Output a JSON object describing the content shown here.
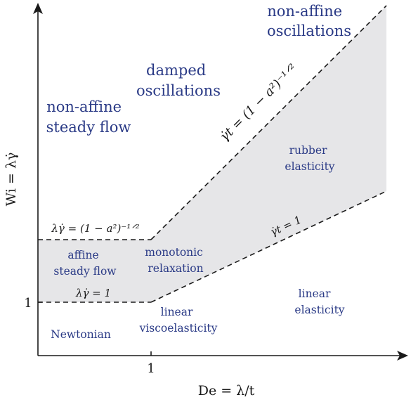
{
  "axes": {
    "x_label": "De = λ/t",
    "y_label": "Wi = λγ̇",
    "x_tick": "1",
    "y_tick": "1"
  },
  "regions": {
    "non_affine_oscillations": [
      "non-affine",
      "oscillations"
    ],
    "damped_oscillations": [
      "damped",
      "oscillations"
    ],
    "non_affine_steady_flow": [
      "non-affine",
      "steady flow"
    ],
    "rubber_elasticity": [
      "rubber",
      "elasticity"
    ],
    "affine_steady_flow": [
      "affine",
      "steady flow"
    ],
    "monotonic_relaxation": [
      "monotonic",
      "relaxation"
    ],
    "linear_elasticity": [
      "linear",
      "elasticity"
    ],
    "linear_viscoelasticity": [
      "linear",
      "viscoelasticity"
    ],
    "newtonian": [
      "Newtonian"
    ]
  },
  "boundaries": {
    "upper_horizontal": "λγ̇ = (1 − a²)⁻¹ᐟ²",
    "upper_diagonal": "γ̇t = (1 − a²)⁻¹ᐟ²",
    "lower_horizontal": "λγ̇ = 1",
    "lower_diagonal": "γ̇t = 1"
  },
  "colors": {
    "region_text": "#2a3a86",
    "shading": "#e6e6e8",
    "lines": "#1a1a1a"
  }
}
